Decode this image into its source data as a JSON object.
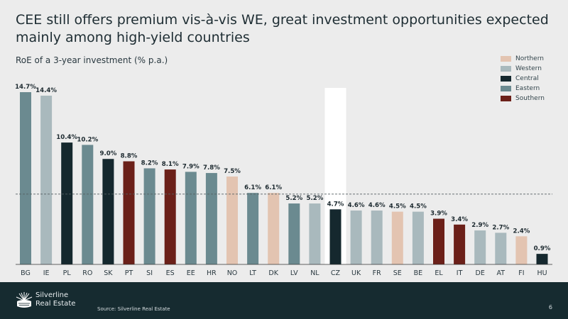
{
  "header": {
    "title": "CEE still offers premium vis-à-vis WE, great investment opportunities expected mainly among high-yield countries",
    "subtitle": "RoE of a 3-year investment (% p.a.)"
  },
  "legend": [
    {
      "label": "Northern",
      "color": "#e3c4b1"
    },
    {
      "label": "Western",
      "color": "#a9b9bd"
    },
    {
      "label": "Central",
      "color": "#15282e"
    },
    {
      "label": "Eastern",
      "color": "#6b8a90"
    },
    {
      "label": "Southern",
      "color": "#6b2019"
    }
  ],
  "chart_data": {
    "type": "bar",
    "categories": [
      "BG",
      "IE",
      "PL",
      "RO",
      "SK",
      "PT",
      "SI",
      "ES",
      "EE",
      "HR",
      "NO",
      "LT",
      "DK",
      "LV",
      "NL",
      "CZ",
      "UK",
      "FR",
      "SE",
      "BE",
      "EL",
      "IT",
      "DE",
      "AT",
      "FI",
      "HU"
    ],
    "values": [
      14.7,
      14.4,
      10.4,
      10.2,
      9.0,
      8.8,
      8.2,
      8.1,
      7.9,
      7.8,
      7.5,
      6.1,
      6.1,
      5.2,
      5.2,
      4.7,
      4.6,
      4.6,
      4.5,
      4.5,
      3.9,
      3.4,
      2.9,
      2.7,
      2.4,
      0.9
    ],
    "value_labels": [
      "14.7%",
      "14.4%",
      "10.4%",
      "10.2%",
      "9.0%",
      "8.8%",
      "8.2%",
      "8.1%",
      "7.9%",
      "7.8%",
      "7.5%",
      "6.1%",
      "6.1%",
      "5.2%",
      "5.2%",
      "4.7%",
      "4.6%",
      "4.6%",
      "4.5%",
      "4.5%",
      "3.9%",
      "3.4%",
      "2.9%",
      "2.7%",
      "2.4%",
      "0.9%"
    ],
    "regions": [
      "Eastern",
      "Western",
      "Central",
      "Eastern",
      "Central",
      "Southern",
      "Eastern",
      "Southern",
      "Eastern",
      "Eastern",
      "Northern",
      "Eastern",
      "Northern",
      "Eastern",
      "Western",
      "Central",
      "Western",
      "Western",
      "Northern",
      "Western",
      "Southern",
      "Southern",
      "Western",
      "Western",
      "Northern",
      "Central"
    ],
    "reference_line": 6.0,
    "highlight_category": "CZ",
    "ylim": [
      0,
      14.7
    ],
    "xlabel": "",
    "ylabel": ""
  },
  "footer": {
    "brand_line1": "Silverline",
    "brand_line2": "Real Estate",
    "source": "Source: Silverline Real Estate",
    "page_number": "6"
  }
}
